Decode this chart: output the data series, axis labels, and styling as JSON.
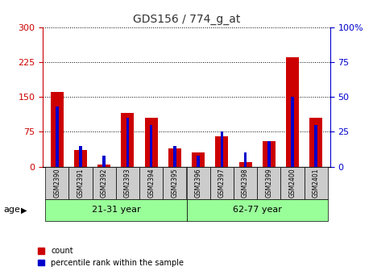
{
  "title": "GDS156 / 774_g_at",
  "samples": [
    "GSM2390",
    "GSM2391",
    "GSM2392",
    "GSM2393",
    "GSM2394",
    "GSM2395",
    "GSM2396",
    "GSM2397",
    "GSM2398",
    "GSM2399",
    "GSM2400",
    "GSM2401"
  ],
  "count": [
    160,
    35,
    5,
    115,
    105,
    40,
    30,
    65,
    10,
    55,
    235,
    105
  ],
  "percentile": [
    43,
    15,
    8,
    35,
    30,
    15,
    8,
    25,
    10,
    18,
    50,
    30
  ],
  "ylim_left": [
    0,
    300
  ],
  "ylim_right": [
    0,
    100
  ],
  "yticks_left": [
    0,
    75,
    150,
    225,
    300
  ],
  "yticks_right": [
    0,
    25,
    50,
    75,
    100
  ],
  "group1_label": "21-31 year",
  "group1_samples": 6,
  "group2_label": "62-77 year",
  "group2_samples": 6,
  "age_label": "age",
  "legend1": "count",
  "legend2": "percentile rank within the sample",
  "bar_color_red": "#cc0000",
  "bar_color_blue": "#0000cc",
  "group_bg_color": "#99ff99",
  "sample_bg_color": "#cccccc",
  "title_color": "#333333",
  "left_axis_color": "#cc0000",
  "right_axis_color": "#0000cc",
  "bar_width": 0.55,
  "blue_bar_width": 0.4
}
